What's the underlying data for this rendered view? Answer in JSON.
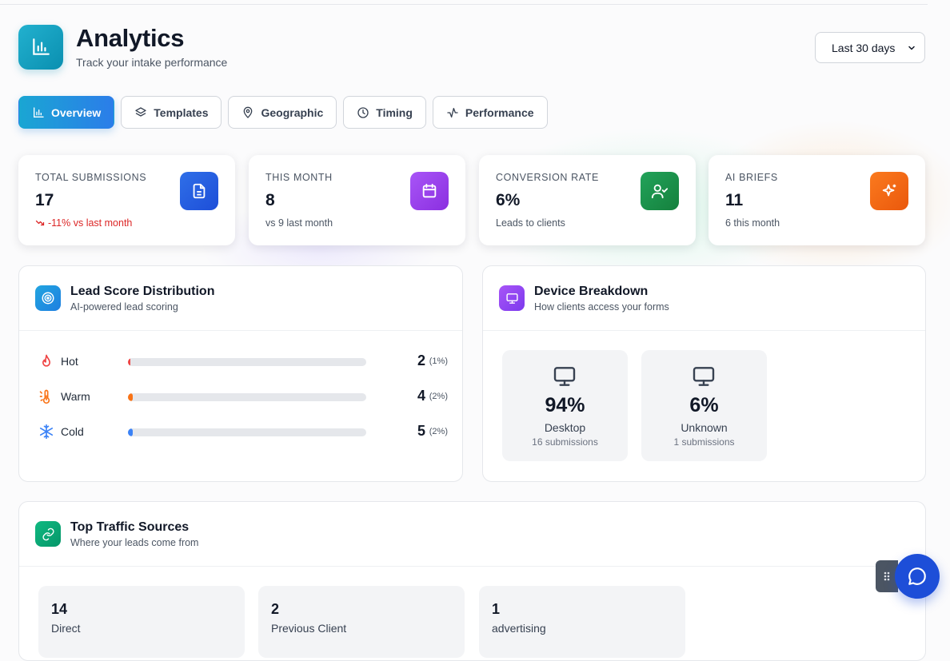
{
  "header": {
    "title": "Analytics",
    "subtitle": "Track your intake performance",
    "range_value": "Last 30 days"
  },
  "tabs": [
    {
      "label": "Overview",
      "icon": "bar-chart-icon",
      "active": true
    },
    {
      "label": "Templates",
      "icon": "layers-icon",
      "active": false
    },
    {
      "label": "Geographic",
      "icon": "map-pin-icon",
      "active": false
    },
    {
      "label": "Timing",
      "icon": "clock-icon",
      "active": false
    },
    {
      "label": "Performance",
      "icon": "activity-icon",
      "active": false
    }
  ],
  "stats": [
    {
      "label": "TOTAL SUBMISSIONS",
      "value": "17",
      "note": "-11% vs last month",
      "icon": "document-icon",
      "color": "#2563eb"
    },
    {
      "label": "THIS MONTH",
      "value": "8",
      "note": "vs 9 last month",
      "icon": "calendar-icon",
      "color": "#9333ea"
    },
    {
      "label": "CONVERSION RATE",
      "value": "6%",
      "note": "Leads to clients",
      "icon": "user-check-icon",
      "color": "#16a34a"
    },
    {
      "label": "AI BRIEFS",
      "value": "11",
      "note": "6 this month",
      "icon": "sparkles-icon",
      "color": "#f97316"
    }
  ],
  "lead_score": {
    "title": "Lead Score Distribution",
    "subtitle": "AI-powered lead scoring",
    "rows": [
      {
        "name": "Hot",
        "count": "2",
        "pct": "(1%)",
        "fill_fraction": 0.01,
        "color": "#ef4444",
        "icon": "flame-icon"
      },
      {
        "name": "Warm",
        "count": "4",
        "pct": "(2%)",
        "fill_fraction": 0.02,
        "color": "#f97316",
        "icon": "thermometer-icon"
      },
      {
        "name": "Cold",
        "count": "5",
        "pct": "(2%)",
        "fill_fraction": 0.02,
        "color": "#3b82f6",
        "icon": "snowflake-icon"
      }
    ]
  },
  "devices": {
    "title": "Device Breakdown",
    "subtitle": "How clients access your forms",
    "items": [
      {
        "pct": "94%",
        "name": "Desktop",
        "sub": "16 submissions"
      },
      {
        "pct": "6%",
        "name": "Unknown",
        "sub": "1 submissions"
      }
    ]
  },
  "traffic": {
    "title": "Top Traffic Sources",
    "subtitle": "Where your leads come from",
    "items": [
      {
        "value": "14",
        "label": "Direct"
      },
      {
        "value": "2",
        "label": "Previous Client"
      },
      {
        "value": "1",
        "label": "advertising"
      }
    ]
  }
}
